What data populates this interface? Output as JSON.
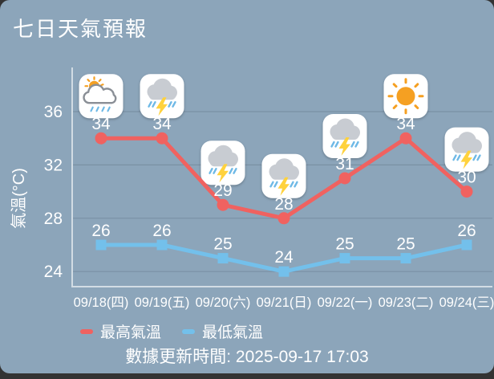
{
  "title": "七日天氣預報",
  "colors": {
    "backdrop": "#333333",
    "panel_bg": "#8CA5BA",
    "text": "#ffffff",
    "grid": "#7A90A4",
    "axis": "#D2DCE4",
    "max_line": "#F06260",
    "min_line": "#73C0EB",
    "icon_bg": "#ffffff",
    "sun": "#F5A023",
    "cloud_gray": "#C8CCD2",
    "cloud_outline": "#8A8F96",
    "bolt_yellow": "#FFD23C",
    "rain_blue": "#6EB9E6"
  },
  "chart_data": {
    "type": "line",
    "title": "七日天氣預報",
    "categories": [
      "09/18(四)",
      "09/19(五)",
      "09/20(六)",
      "09/21(日)",
      "09/22(一)",
      "09/23(二)",
      "09/24(三)"
    ],
    "series": [
      {
        "name": "最高氣溫",
        "values": [
          34,
          34,
          29,
          28,
          31,
          34,
          30
        ],
        "color": "#F06260",
        "marker": "circle"
      },
      {
        "name": "最低氣溫",
        "values": [
          26,
          26,
          25,
          24,
          25,
          25,
          26
        ],
        "color": "#73C0EB",
        "marker": "square"
      }
    ],
    "day_icons": [
      "partly-sunny-rain",
      "thunderstorm",
      "thunderstorm",
      "thunderstorm",
      "thunderstorm",
      "sunny",
      "thunderstorm"
    ],
    "ylabel": "氣溫(°C)",
    "yticks": [
      36,
      32,
      28,
      24
    ],
    "ylim": [
      23,
      38
    ],
    "grid": true,
    "legend_position": "bottom"
  },
  "footer": {
    "update_text": "數據更新時間: 2025-09-17 17:03"
  }
}
